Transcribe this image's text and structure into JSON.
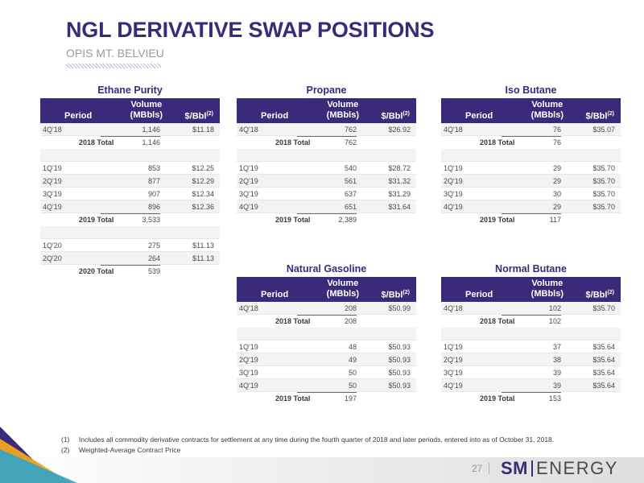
{
  "title": "NGL DERIVATIVE SWAP POSITIONS",
  "subtitle": "OPIS MT. BELVIEU",
  "headers": {
    "period": "Period",
    "volume_line1": "Volume",
    "volume_line2": "(MBbls)",
    "price": "$/Bbl",
    "price_note": "(2)"
  },
  "tables": {
    "ethane": {
      "title": "Ethane Purity",
      "rows": [
        {
          "period": "4Q'18",
          "volume": "1,146",
          "price": "$11.18"
        },
        {
          "period": "2018 Total",
          "volume": "1,146",
          "price": ""
        },
        {
          "period": "1Q'19",
          "volume": "853",
          "price": "$12.25"
        },
        {
          "period": "2Q'19",
          "volume": "877",
          "price": "$12.29"
        },
        {
          "period": "3Q'19",
          "volume": "907",
          "price": "$12.34"
        },
        {
          "period": "4Q'19",
          "volume": "896",
          "price": "$12.36"
        },
        {
          "period": "2019 Total",
          "volume": "3,533",
          "price": ""
        },
        {
          "period": "1Q'20",
          "volume": "275",
          "price": "$11.13"
        },
        {
          "period": "2Q'20",
          "volume": "264",
          "price": "$11.13"
        },
        {
          "period": "2020 Total",
          "volume": "539",
          "price": ""
        }
      ]
    },
    "propane": {
      "title": "Propane",
      "rows": [
        {
          "period": "4Q'18",
          "volume": "762",
          "price": "$26.92"
        },
        {
          "period": "2018 Total",
          "volume": "762",
          "price": ""
        },
        {
          "period": "1Q'19",
          "volume": "540",
          "price": "$28.72"
        },
        {
          "period": "2Q'19",
          "volume": "561",
          "price": "$31.32"
        },
        {
          "period": "3Q'19",
          "volume": "637",
          "price": "$31.29"
        },
        {
          "period": "4Q'19",
          "volume": "651",
          "price": "$31.64"
        },
        {
          "period": "2019 Total",
          "volume": "2,389",
          "price": ""
        }
      ]
    },
    "isobutane": {
      "title": "Iso Butane",
      "rows": [
        {
          "period": "4Q'18",
          "volume": "76",
          "price": "$35.07"
        },
        {
          "period": "2018 Total",
          "volume": "76",
          "price": ""
        },
        {
          "period": "1Q'19",
          "volume": "29",
          "price": "$35.70"
        },
        {
          "period": "2Q'19",
          "volume": "29",
          "price": "$35.70"
        },
        {
          "period": "3Q'19",
          "volume": "30",
          "price": "$35.70"
        },
        {
          "period": "4Q'19",
          "volume": "29",
          "price": "$35.70"
        },
        {
          "period": "2019 Total",
          "volume": "117",
          "price": ""
        }
      ]
    },
    "natgas": {
      "title": "Natural Gasoline",
      "rows": [
        {
          "period": "4Q'18",
          "volume": "208",
          "price": "$50.99"
        },
        {
          "period": "2018 Total",
          "volume": "208",
          "price": ""
        },
        {
          "period": "1Q'19",
          "volume": "48",
          "price": "$50.93"
        },
        {
          "period": "2Q'19",
          "volume": "49",
          "price": "$50.93"
        },
        {
          "period": "3Q'19",
          "volume": "50",
          "price": "$50.93"
        },
        {
          "period": "4Q'19",
          "volume": "50",
          "price": "$50.93"
        },
        {
          "period": "2019 Total",
          "volume": "197",
          "price": ""
        }
      ]
    },
    "normbutane": {
      "title": "Normal Butane",
      "rows": [
        {
          "period": "4Q'18",
          "volume": "102",
          "price": "$35.70"
        },
        {
          "period": "2018 Total",
          "volume": "102",
          "price": ""
        },
        {
          "period": "1Q'19",
          "volume": "37",
          "price": "$35.64"
        },
        {
          "period": "2Q'19",
          "volume": "38",
          "price": "$35.64"
        },
        {
          "period": "3Q'19",
          "volume": "39",
          "price": "$35.64"
        },
        {
          "period": "4Q'19",
          "volume": "39",
          "price": "$35.64"
        },
        {
          "period": "2019 Total",
          "volume": "153",
          "price": ""
        }
      ]
    }
  },
  "footnotes": [
    {
      "num": "(1)",
      "text": "Includes all commodity derivative contracts for settlement at any time during the fourth quarter of 2018 and later periods, entered into as of October 31, 2018."
    },
    {
      "num": "(2)",
      "text": "Weighted-Average Contract Price"
    }
  ],
  "page_number": "27",
  "logo": {
    "sm": "SM",
    "energy": "ENERGY"
  },
  "colors": {
    "brand": "#3b2a7a",
    "accent_orange": "#f2a71b",
    "accent_blue": "#2fa4c9"
  }
}
